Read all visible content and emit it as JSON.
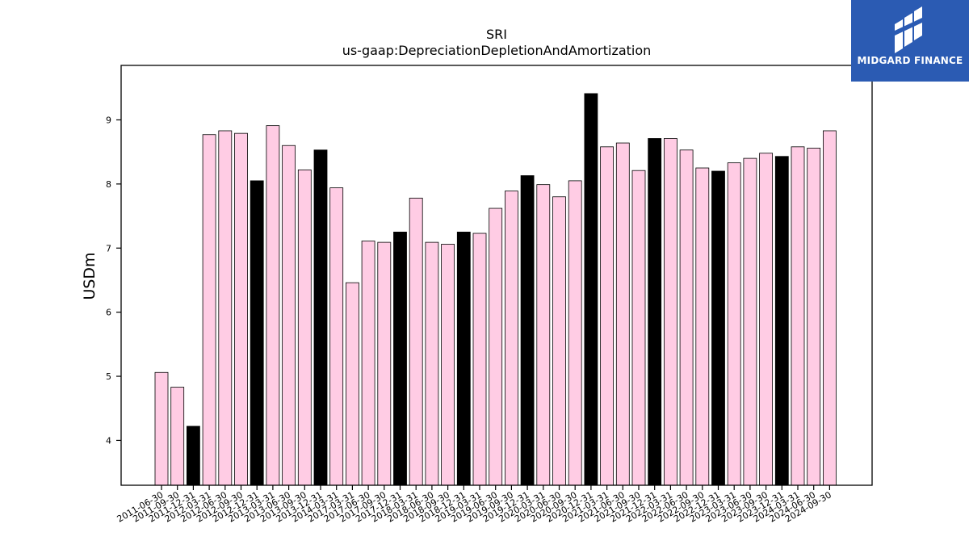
{
  "brand": {
    "name": "MIDGARD FINANCE",
    "color": "#2b5bb3",
    "icon": "midgard-logo-icon"
  },
  "chart_data": {
    "type": "bar",
    "title": "SRI",
    "subtitle": "us-gaap:DepreciationDepletionAndAmortization",
    "ylabel": "USDm",
    "xlabel": "",
    "ylim": [
      3.3,
      9.85
    ],
    "yticks": [
      4,
      5,
      6,
      7,
      8,
      9
    ],
    "grid": false,
    "colors": {
      "quarter": "#ffcce4",
      "year_end": "#000000",
      "edge": "#000000"
    },
    "categories": [
      "2011-06-30",
      "2011-09-30",
      "2011-12-31",
      "2012-03-31",
      "2012-06-30",
      "2012-09-30",
      "2012-12-31",
      "2013-03-31",
      "2013-06-30",
      "2013-09-30",
      "2013-12-31",
      "2014-03-31",
      "2017-03-31",
      "2017-06-30",
      "2017-09-30",
      "2017-12-31",
      "2018-03-31",
      "2018-06-30",
      "2018-09-30",
      "2018-12-31",
      "2019-03-31",
      "2019-06-30",
      "2019-09-30",
      "2019-12-31",
      "2020-03-31",
      "2020-06-30",
      "2020-09-30",
      "2020-12-31",
      "2021-03-31",
      "2021-06-30",
      "2021-09-30",
      "2021-12-31",
      "2022-03-31",
      "2022-06-30",
      "2022-09-30",
      "2022-12-31",
      "2023-03-31",
      "2023-06-30",
      "2023-09-30",
      "2023-12-31",
      "2024-03-31",
      "2024-06-30",
      "2024-09-30"
    ],
    "values": [
      5.06,
      4.83,
      4.22,
      8.77,
      8.83,
      8.79,
      8.05,
      8.91,
      8.6,
      8.22,
      8.53,
      7.94,
      6.46,
      7.11,
      7.09,
      7.25,
      7.78,
      7.09,
      7.06,
      7.25,
      7.23,
      7.62,
      7.89,
      8.13,
      7.99,
      7.8,
      8.05,
      9.41,
      8.58,
      8.64,
      8.21,
      8.71,
      8.71,
      8.53,
      8.25,
      8.2,
      8.33,
      8.4,
      8.48,
      8.43,
      8.58,
      8.56,
      8.83
    ],
    "highlight": [
      false,
      false,
      true,
      false,
      false,
      false,
      true,
      false,
      false,
      false,
      true,
      false,
      false,
      false,
      false,
      true,
      false,
      false,
      false,
      true,
      false,
      false,
      false,
      true,
      false,
      false,
      false,
      true,
      false,
      false,
      false,
      true,
      false,
      false,
      false,
      true,
      false,
      false,
      false,
      true,
      false,
      false,
      false
    ]
  }
}
